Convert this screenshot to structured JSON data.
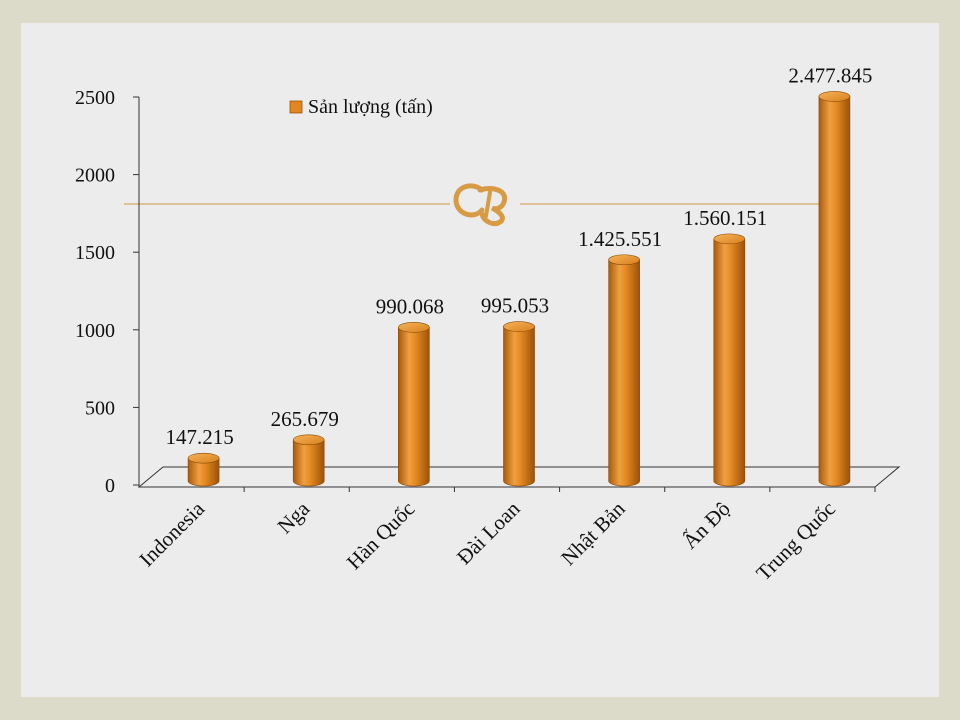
{
  "chart_data": {
    "type": "bar",
    "categories": [
      "Indonesia",
      "Nga",
      "Hàn Quốc",
      "Đài Loan",
      "Nhật Bản",
      "Ấn Độ",
      "Trung Quốc"
    ],
    "series": [
      {
        "name": "Sản lượng (tấn)",
        "values": [
          147.215,
          265.679,
          990.068,
          995.053,
          1425.551,
          1560.151,
          2477.845
        ]
      }
    ],
    "data_labels": [
      "147.215",
      "265.679",
      "990.068",
      "995.053",
      "1.425.551",
      "1.560.151",
      "2.477.845"
    ],
    "ylim": [
      0,
      2500
    ],
    "yticks": [
      0,
      500,
      1000,
      1500,
      2000,
      2500
    ],
    "bar_color": "#e2861f",
    "grid": false,
    "legend_position": "top-left",
    "title": "",
    "xlabel": "",
    "ylabel": ""
  },
  "decoration": {
    "rule_color": "#d9b07a",
    "ornament_color": "#d79a45"
  }
}
